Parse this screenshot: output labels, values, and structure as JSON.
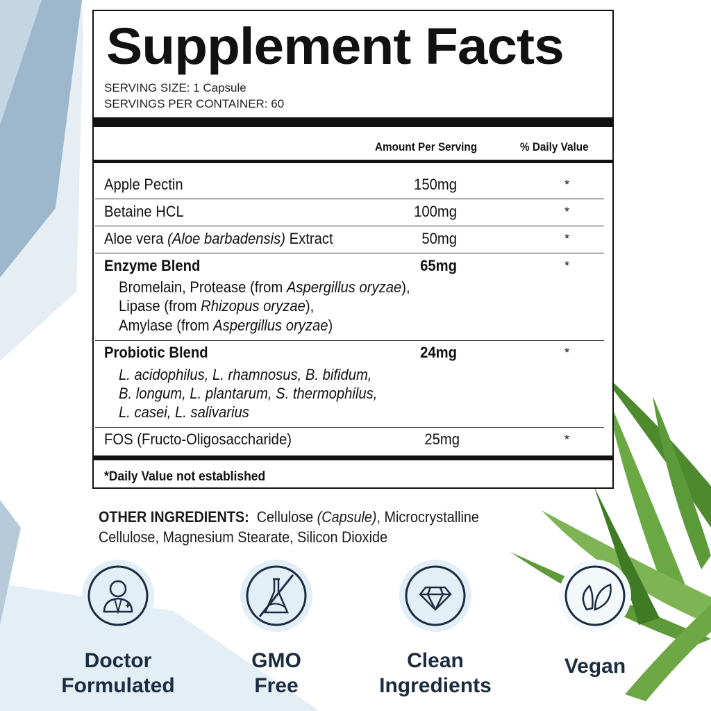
{
  "panel": {
    "title": "Supplement Facts",
    "serving_size": "SERVING SIZE: 1 Capsule",
    "servings_per_container": "SERVINGS PER CONTAINER: 60",
    "headers": {
      "amount": "Amount Per Serving",
      "daily_value": "% Daily Value"
    },
    "rows": [
      {
        "name": "Apple Pectin",
        "amount": "150mg",
        "dv": "*"
      },
      {
        "name": "Betaine HCL",
        "amount": "100mg",
        "dv": "*"
      },
      {
        "name_pre": "Aloe vera ",
        "name_italic": "(Aloe barbadensis)",
        "name_post": " Extract",
        "amount": "50mg",
        "dv": "*"
      },
      {
        "name": "Enzyme Blend",
        "amount": "65mg",
        "dv": "*",
        "sub": [
          {
            "pre": "Bromelain, Protease (from ",
            "it": "Aspergillus oryzae",
            "post": "),"
          },
          {
            "pre": "Lipase (from ",
            "it": "Rhizopus oryzae",
            "post": "),"
          },
          {
            "pre": "Amylase (from ",
            "it": "Aspergillus oryzae",
            "post": ")"
          }
        ]
      },
      {
        "name": "Probiotic Blend",
        "amount": "24mg",
        "dv": "*",
        "sub": [
          "L. acidophilus, L. rhamnosus, B. bifidum,",
          "B. longum, L. plantarum, S. thermophilus,",
          "L. casei, L. salivarius"
        ]
      },
      {
        "name": "FOS (Fructo-Oligosaccharide)",
        "amount": "25mg",
        "dv": "*"
      }
    ],
    "footnote": "*Daily Value not established"
  },
  "other_ingredients": {
    "label": "OTHER INGREDIENTS:",
    "pre": "Cellulose ",
    "italic": "(Capsule)",
    "post": ", Microcrystalline",
    "line2": "Cellulose, Magnesium Stearate, Silicon Dioxide"
  },
  "badges": [
    {
      "icon": "doctor-icon",
      "line1": "Doctor",
      "line2": "Formulated"
    },
    {
      "icon": "no-gmo-flask-icon",
      "line1": "GMO",
      "line2": "Free"
    },
    {
      "icon": "diamond-icon",
      "line1": "Clean",
      "line2": "Ingredients"
    },
    {
      "icon": "leaf-icon",
      "line1": "Vegan",
      "line2": ""
    }
  ],
  "colors": {
    "navy": "#1c2b3f",
    "badge_bg": "#e2eff7",
    "aloe": "#5f9a3a",
    "bg_shape": "#8fb0c8"
  }
}
